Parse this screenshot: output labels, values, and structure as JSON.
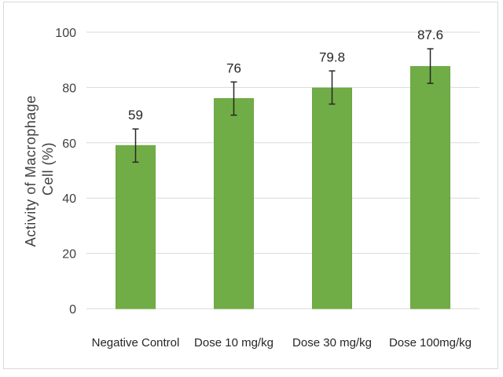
{
  "chart_data": {
    "type": "bar",
    "categories": [
      "Negative Control",
      "Dose 10 mg/kg",
      "Dose 30 mg/kg",
      "Dose 100mg/kg"
    ],
    "values": [
      59,
      76,
      79.8,
      87.6
    ],
    "data_labels": [
      "59",
      "76",
      "79.8",
      "87.6"
    ],
    "error_bars": [
      {
        "low": 53,
        "high": 65
      },
      {
        "low": 70,
        "high": 82
      },
      {
        "low": 74,
        "high": 86
      },
      {
        "low": 81.5,
        "high": 94
      }
    ],
    "ylabel_lines": [
      "Activity of Macrophage",
      "Cell (%)"
    ],
    "xlabel": "",
    "ylim": [
      0,
      100
    ],
    "yticks": [
      0,
      20,
      40,
      60,
      80,
      100
    ],
    "grid": true,
    "legend": "none",
    "colors": {
      "bar": "#70ad47",
      "bar_border": "#6aa641",
      "gridline": "#d9d9d9",
      "error_bar": "#262626"
    }
  }
}
